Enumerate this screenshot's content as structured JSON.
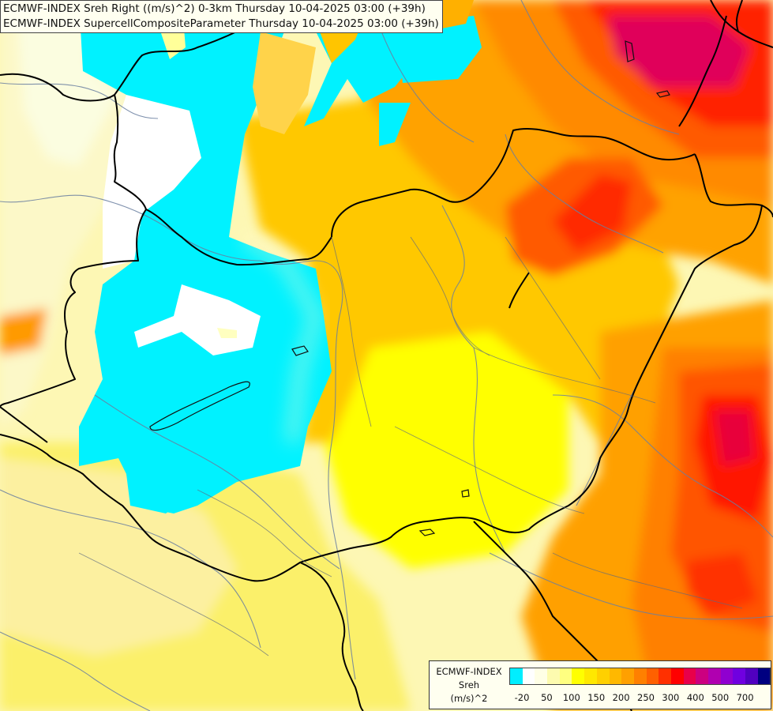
{
  "header": {
    "line1": "ECMWF-INDEX Sreh Right ((m/s)^2) 0-3km Thursday 10-04-2025 03:00 (+39h)",
    "line2": "ECMWF-INDEX SupercellCompositeParameter Thursday 10-04-2025 03:00 (+39h)"
  },
  "legend": {
    "title_line1": "ECMWF-INDEX",
    "title_line2": "Sreh",
    "title_line3": "(m/s)^2",
    "colors": [
      "#00eeff",
      "#ffffff",
      "#ffffe6",
      "#fdfbaf",
      "#ffff80",
      "#ffff00",
      "#ffe800",
      "#ffd000",
      "#ffb800",
      "#ffa000",
      "#ff8000",
      "#ff6000",
      "#ff3000",
      "#ff0000",
      "#e8004a",
      "#cc0080",
      "#b000b0",
      "#9000d0",
      "#7000e0",
      "#5000c0",
      "#000080"
    ],
    "ticks": [
      "-20",
      "50",
      "100",
      "150",
      "200",
      "250",
      "300",
      "400",
      "500",
      "700"
    ]
  },
  "map": {
    "features": [
      "borders",
      "rivers",
      "lakes"
    ],
    "field": "Sreh 0-3km"
  }
}
